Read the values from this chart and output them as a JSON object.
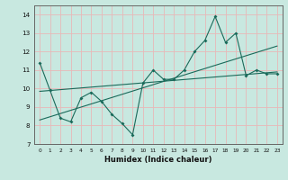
{
  "title": "",
  "xlabel": "Humidex (Indice chaleur)",
  "ylabel": "",
  "xlim": [
    -0.5,
    23.5
  ],
  "ylim": [
    7,
    14.5
  ],
  "yticks": [
    7,
    8,
    9,
    10,
    11,
    12,
    13,
    14
  ],
  "xticks": [
    0,
    1,
    2,
    3,
    4,
    5,
    6,
    7,
    8,
    9,
    10,
    11,
    12,
    13,
    14,
    15,
    16,
    17,
    18,
    19,
    20,
    21,
    22,
    23
  ],
  "bg_color": "#c8e8e0",
  "grid_color_major": "#f0c8c8",
  "grid_color_minor": "#d8e8e0",
  "line_color": "#1a6a5a",
  "series1": {
    "x": [
      0,
      1,
      2,
      3,
      4,
      5,
      6,
      7,
      8,
      9,
      10,
      11,
      12,
      13,
      14,
      15,
      16,
      17,
      18,
      19,
      20,
      21,
      22,
      23
    ],
    "y": [
      11.4,
      9.9,
      8.4,
      8.2,
      9.5,
      9.8,
      9.3,
      8.6,
      8.1,
      7.5,
      10.3,
      11.0,
      10.5,
      10.5,
      11.0,
      12.0,
      12.6,
      13.9,
      12.5,
      13.0,
      10.7,
      11.0,
      10.8,
      10.8
    ]
  },
  "series2_linear": {
    "x": [
      0,
      23
    ],
    "y": [
      9.85,
      10.9
    ]
  },
  "series3_linear": {
    "x": [
      0,
      23
    ],
    "y": [
      8.3,
      12.3
    ]
  }
}
